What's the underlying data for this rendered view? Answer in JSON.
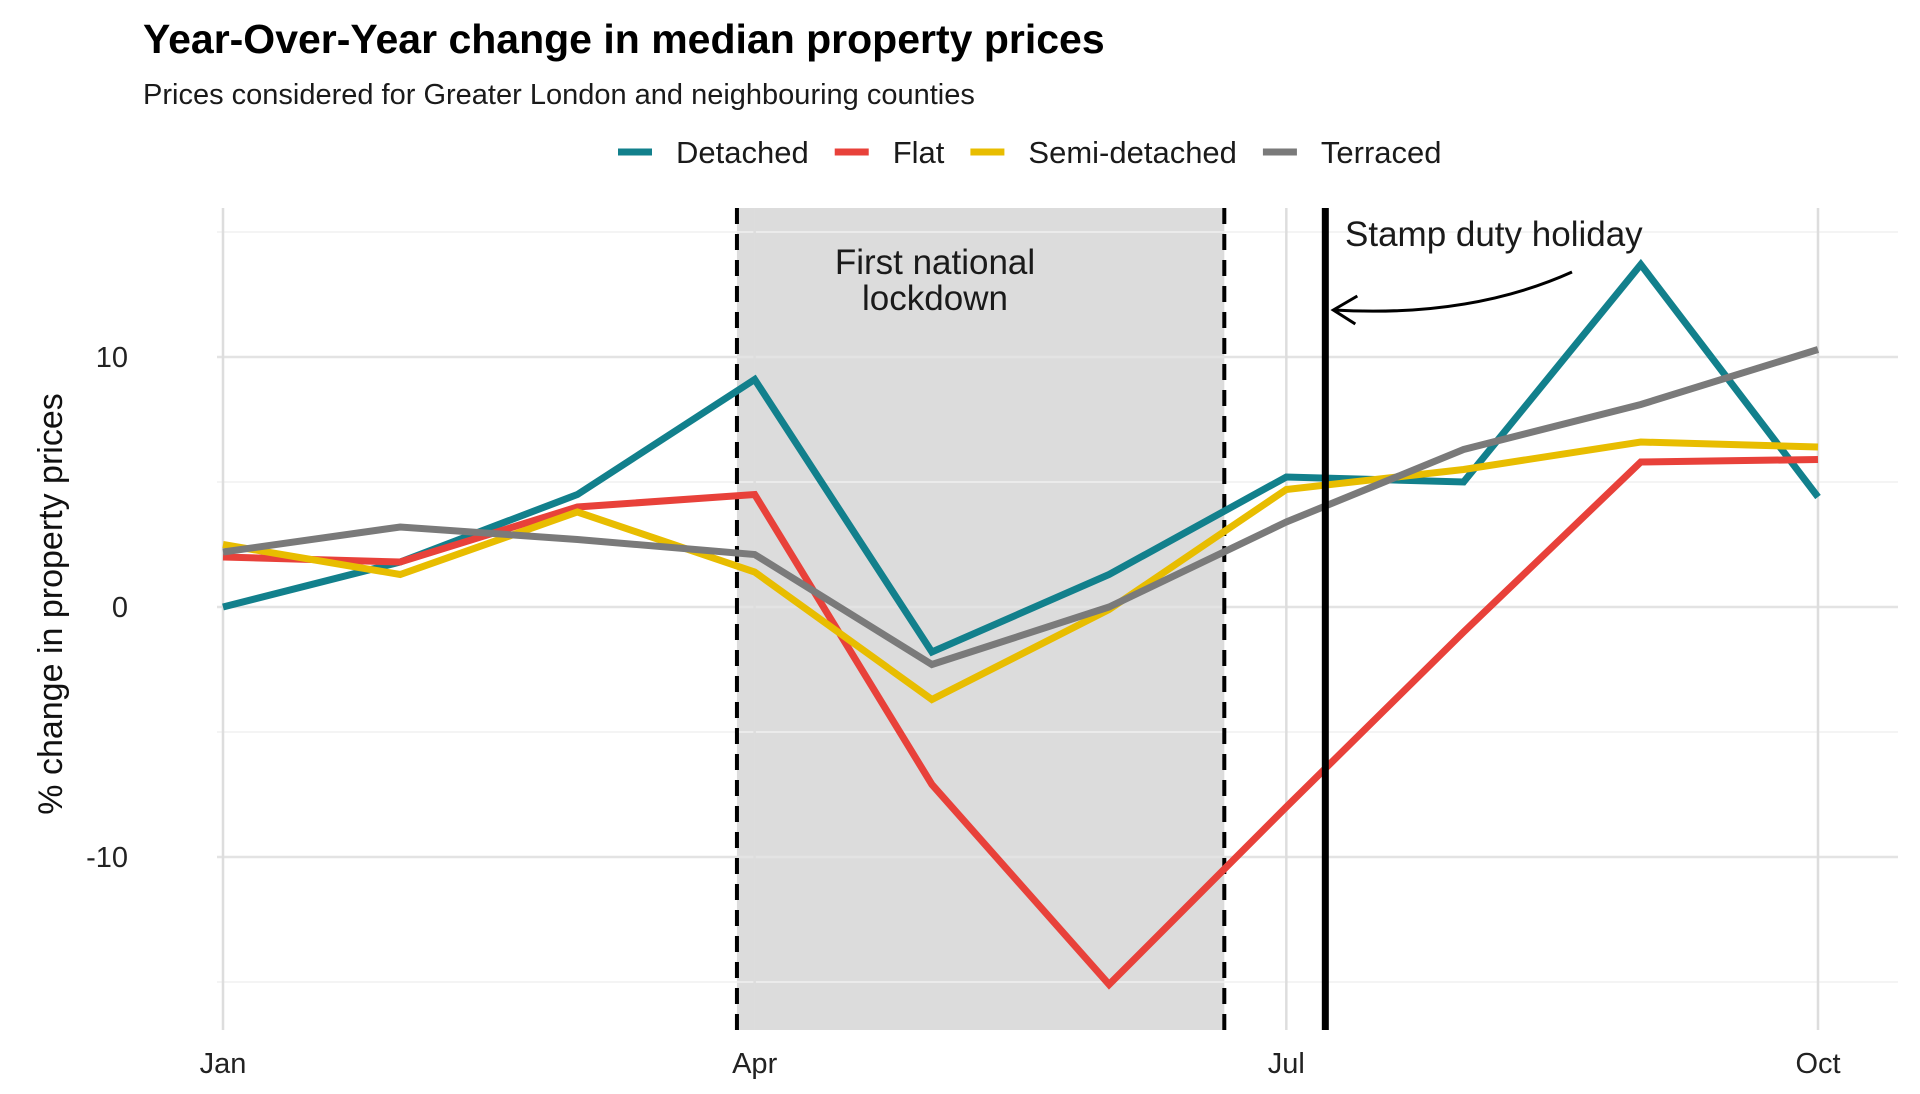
{
  "chart_data": {
    "type": "line",
    "title": "Year-Over-Year change in median property prices",
    "subtitle": "Prices considered for Greater London and neighbouring counties",
    "ylabel": "% change in property prices",
    "xlabel": "",
    "x": [
      1,
      2,
      3,
      4,
      5,
      6,
      7,
      8,
      9,
      10
    ],
    "xlim": [
      1,
      10
    ],
    "ylim": [
      -17,
      15
    ],
    "x_ticks": [
      {
        "value": 1,
        "label": "Jan"
      },
      {
        "value": 4,
        "label": "Apr"
      },
      {
        "value": 7,
        "label": "Jul"
      },
      {
        "value": 10,
        "label": "Oct"
      }
    ],
    "y_ticks": [
      {
        "value": 10,
        "label": "10"
      },
      {
        "value": 0,
        "label": "0"
      },
      {
        "value": -10,
        "label": "-10"
      }
    ],
    "grid": true,
    "legend_position": "top",
    "series": [
      {
        "name": "Detached",
        "color": "#12808c",
        "values": [
          0.0,
          1.8,
          4.5,
          9.1,
          -1.8,
          1.3,
          5.2,
          5.0,
          13.7,
          4.4
        ]
      },
      {
        "name": "Flat",
        "color": "#e8413a",
        "values": [
          2.0,
          1.8,
          4.0,
          4.5,
          -7.1,
          -15.1,
          -8.0,
          -1.0,
          5.8,
          5.9
        ]
      },
      {
        "name": "Semi-detached",
        "color": "#e8bd00",
        "values": [
          2.5,
          1.3,
          3.8,
          1.4,
          -3.7,
          -0.1,
          4.7,
          5.5,
          6.6,
          6.4
        ]
      },
      {
        "name": "Terraced",
        "color": "#7a7a7a",
        "values": [
          2.2,
          3.2,
          2.7,
          2.1,
          -2.3,
          0.0,
          3.4,
          6.3,
          8.1,
          10.3
        ]
      }
    ],
    "annotations": {
      "lockdown": {
        "label_line1": "First national",
        "label_line2": "lockdown",
        "x_start": 3.9,
        "x_end": 6.65
      },
      "stamp_duty": {
        "label": "Stamp duty holiday",
        "x": 7.22
      }
    }
  }
}
